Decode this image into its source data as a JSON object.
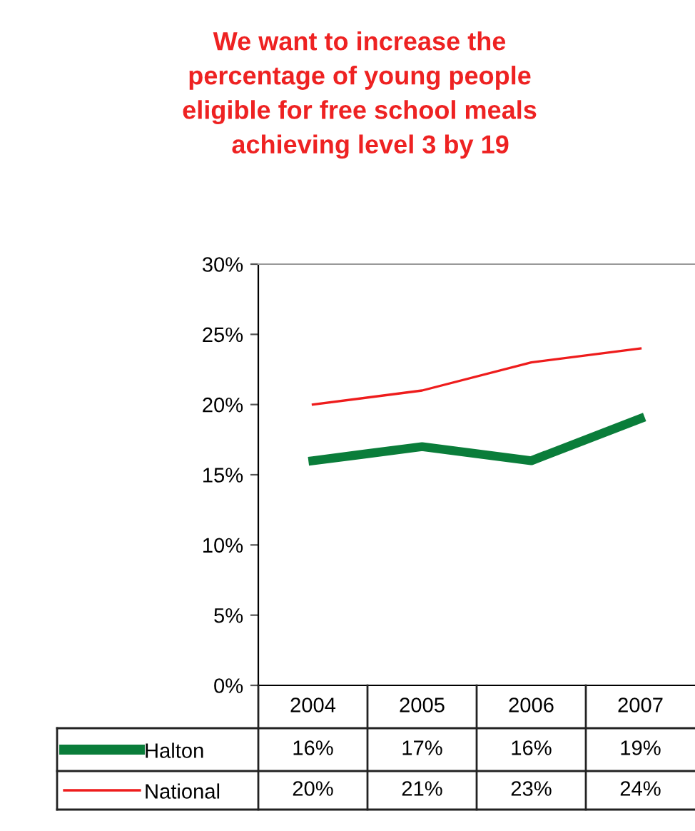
{
  "chart_data": {
    "type": "line",
    "title": "We want to increase the\npercentage of young people\neligible for free school meals\n   achieving level 3 by 19",
    "categories": [
      "2004",
      "2005",
      "2006",
      "2007"
    ],
    "series": [
      {
        "name": "Halton",
        "color": "#0a7d3a",
        "values": [
          16,
          17,
          16,
          19
        ],
        "value_labels": [
          "16%",
          "17%",
          "16%",
          "19%"
        ]
      },
      {
        "name": "National",
        "color": "#ee1c1c",
        "values": [
          20,
          21,
          23,
          24
        ],
        "value_labels": [
          "20%",
          "21%",
          "23%",
          "24%"
        ]
      }
    ],
    "ylim": [
      0,
      30
    ],
    "yticks": [
      {
        "value": 0,
        "label": "0%"
      },
      {
        "value": 5,
        "label": "5%"
      },
      {
        "value": 10,
        "label": "10%"
      },
      {
        "value": 15,
        "label": "15%"
      },
      {
        "value": 20,
        "label": "20%"
      },
      {
        "value": 25,
        "label": "25%"
      },
      {
        "value": 30,
        "label": "30%"
      }
    ],
    "grid": false,
    "legend": "bottom",
    "marker": "none",
    "line_style": "solid"
  }
}
